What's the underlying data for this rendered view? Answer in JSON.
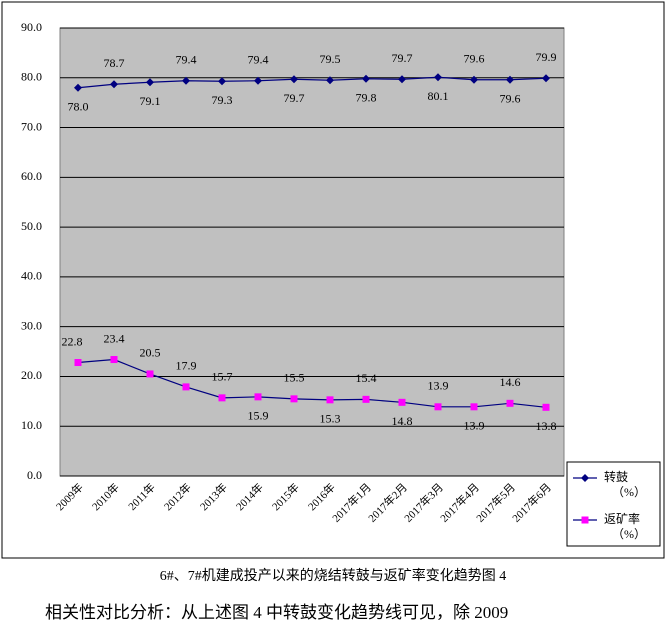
{
  "chart_data": {
    "type": "line",
    "categories": [
      "2009年",
      "2010年",
      "2011年",
      "2012年",
      "2013年",
      "2014年",
      "2015年",
      "2016年",
      "2017年1月",
      "2017年2月",
      "2017年3月",
      "2017年4月",
      "2017年5月",
      "2017年6月"
    ],
    "series": [
      {
        "name": "转鼓",
        "unit": "（%）",
        "color": "#000080",
        "line_color": "#000080",
        "marker": "diamond",
        "values": [
          78.0,
          78.7,
          79.1,
          79.4,
          79.3,
          79.4,
          79.7,
          79.5,
          79.8,
          79.7,
          80.1,
          79.6,
          79.6,
          79.9
        ],
        "value_labels": [
          "78.0",
          "78.7",
          "79.1",
          "79.4",
          "79.3",
          "79.4",
          "79.7",
          "79.5",
          "79.8",
          "79.7",
          "80.1",
          "79.6",
          "79.6",
          "79.9"
        ]
      },
      {
        "name": "返矿率",
        "unit": "（%）",
        "color": "#ff00ff",
        "line_color": "#000080",
        "marker": "square",
        "values": [
          22.8,
          23.4,
          20.5,
          17.9,
          15.7,
          15.9,
          15.5,
          15.3,
          15.4,
          14.8,
          13.9,
          13.9,
          14.6,
          13.8
        ],
        "value_labels": [
          "22.8",
          "23.4",
          "20.5",
          "17.9",
          "15.7",
          "15.9",
          "15.5",
          "15.3",
          "15.4",
          "14.8",
          "13.9",
          "13.9",
          "14.6",
          "13.8"
        ]
      }
    ],
    "ylim": [
      0,
      90
    ],
    "yticks": [
      {
        "value": 0,
        "label": "0.0"
      },
      {
        "value": 10,
        "label": "10.0"
      },
      {
        "value": 20,
        "label": "20.0"
      },
      {
        "value": 30,
        "label": "30.0"
      },
      {
        "value": 40,
        "label": "40.0"
      },
      {
        "value": 50,
        "label": "50.0"
      },
      {
        "value": 60,
        "label": "60.0"
      },
      {
        "value": 70,
        "label": "70.0"
      },
      {
        "value": 80,
        "label": "80.0"
      },
      {
        "value": 90,
        "label": "90.0"
      }
    ],
    "grid": true,
    "plot_background": "#c0c0c0",
    "legend": "right",
    "caption": "6#、7#机建成投产以来的烧结转鼓与返矿率变化趋势图 4"
  },
  "document": {
    "paragraph": "相关性对比分析：从上述图 4 中转鼓变化趋势线可见，除 2009"
  }
}
